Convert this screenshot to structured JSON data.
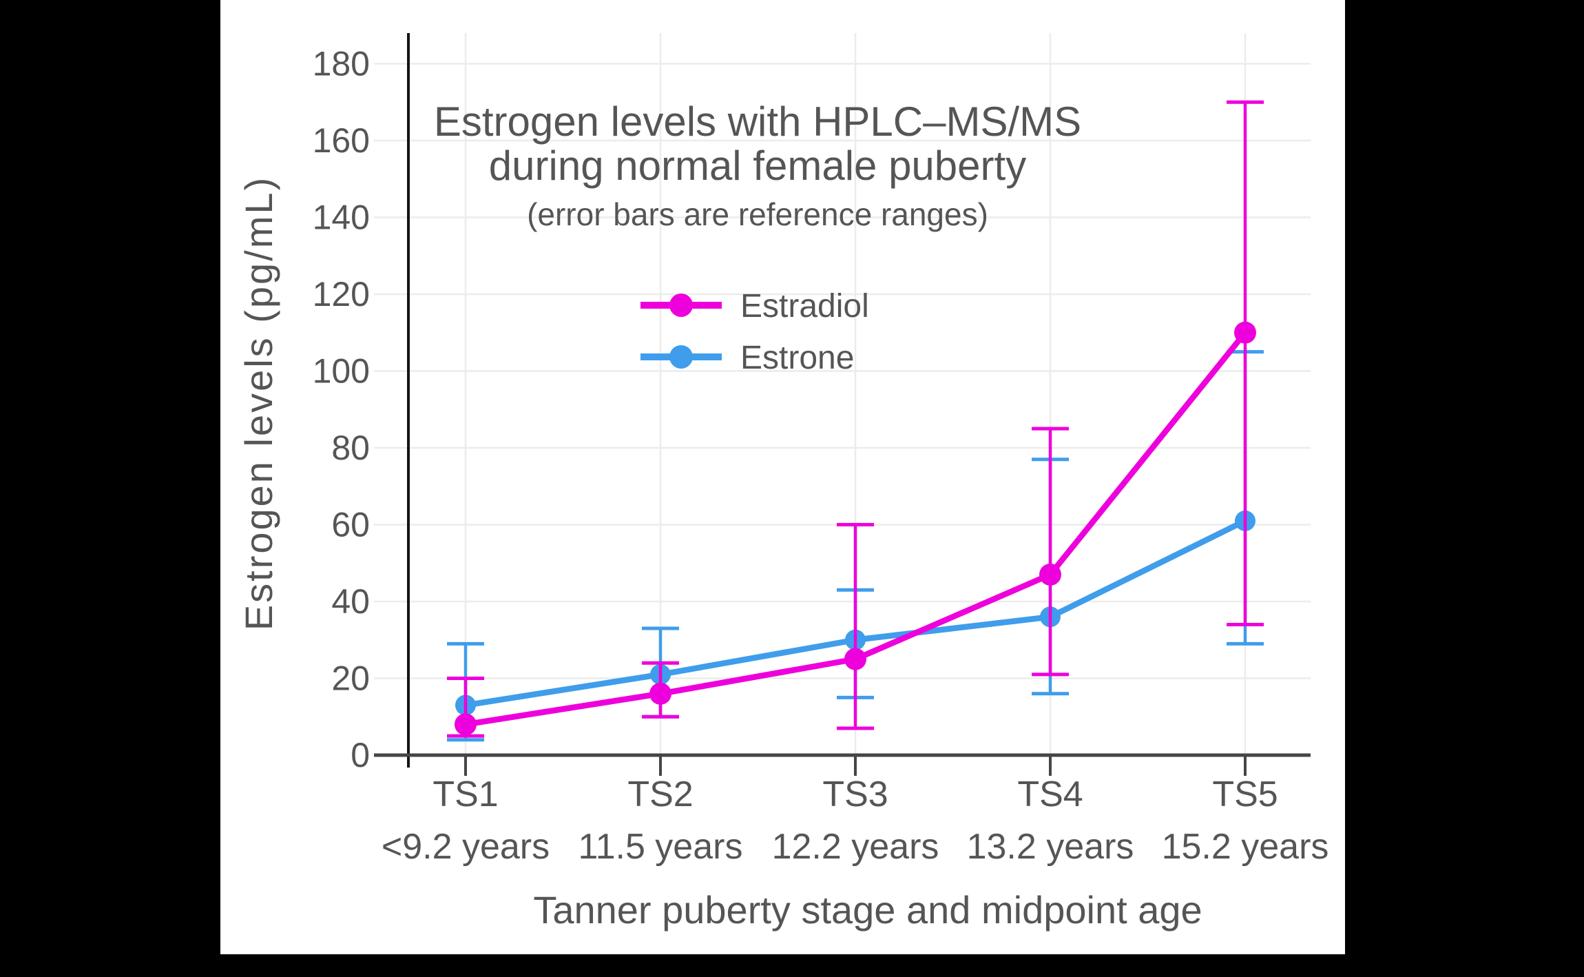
{
  "page": {
    "background": "#000000",
    "canvas_background": "#FFFFFF",
    "text_color": "#555555"
  },
  "chart_data": {
    "type": "line",
    "title_lines": [
      "Estrogen levels with HPLC–MS/MS",
      "during normal female puberty"
    ],
    "subtitle": "(error bars are reference ranges)",
    "xlabel": "Tanner puberty stage and midpoint age",
    "ylabel": "Estrogen levels (pg/mL)",
    "categories": [
      "TS1",
      "TS2",
      "TS3",
      "TS4",
      "TS5"
    ],
    "category_ages": [
      "<9.2 years",
      "11.5 years",
      "12.2 years",
      "13.2 years",
      "15.2 years"
    ],
    "yticks": [
      0,
      20,
      40,
      60,
      80,
      100,
      120,
      140,
      160,
      180
    ],
    "ylim": [
      0,
      188
    ],
    "grid": true,
    "legend_position": "upper-center-inside",
    "error_bar_meaning": "reference ranges",
    "legend": [
      {
        "label": "Estradiol",
        "color": "#EE00DC"
      },
      {
        "label": "Estrone",
        "color": "#3F9DEB"
      }
    ],
    "series": [
      {
        "name": "Estrone",
        "color": "#3F9DEB",
        "values": [
          13,
          21,
          30,
          36,
          61
        ],
        "error_low": [
          4,
          10,
          15,
          16,
          29
        ],
        "error_high": [
          29,
          33,
          43,
          77,
          105
        ]
      },
      {
        "name": "Estradiol",
        "color": "#EE00DC",
        "values": [
          8,
          16,
          25,
          47,
          110
        ],
        "error_low": [
          5,
          10,
          7,
          21,
          34
        ],
        "error_high": [
          20,
          24,
          60,
          85,
          170
        ]
      }
    ]
  }
}
